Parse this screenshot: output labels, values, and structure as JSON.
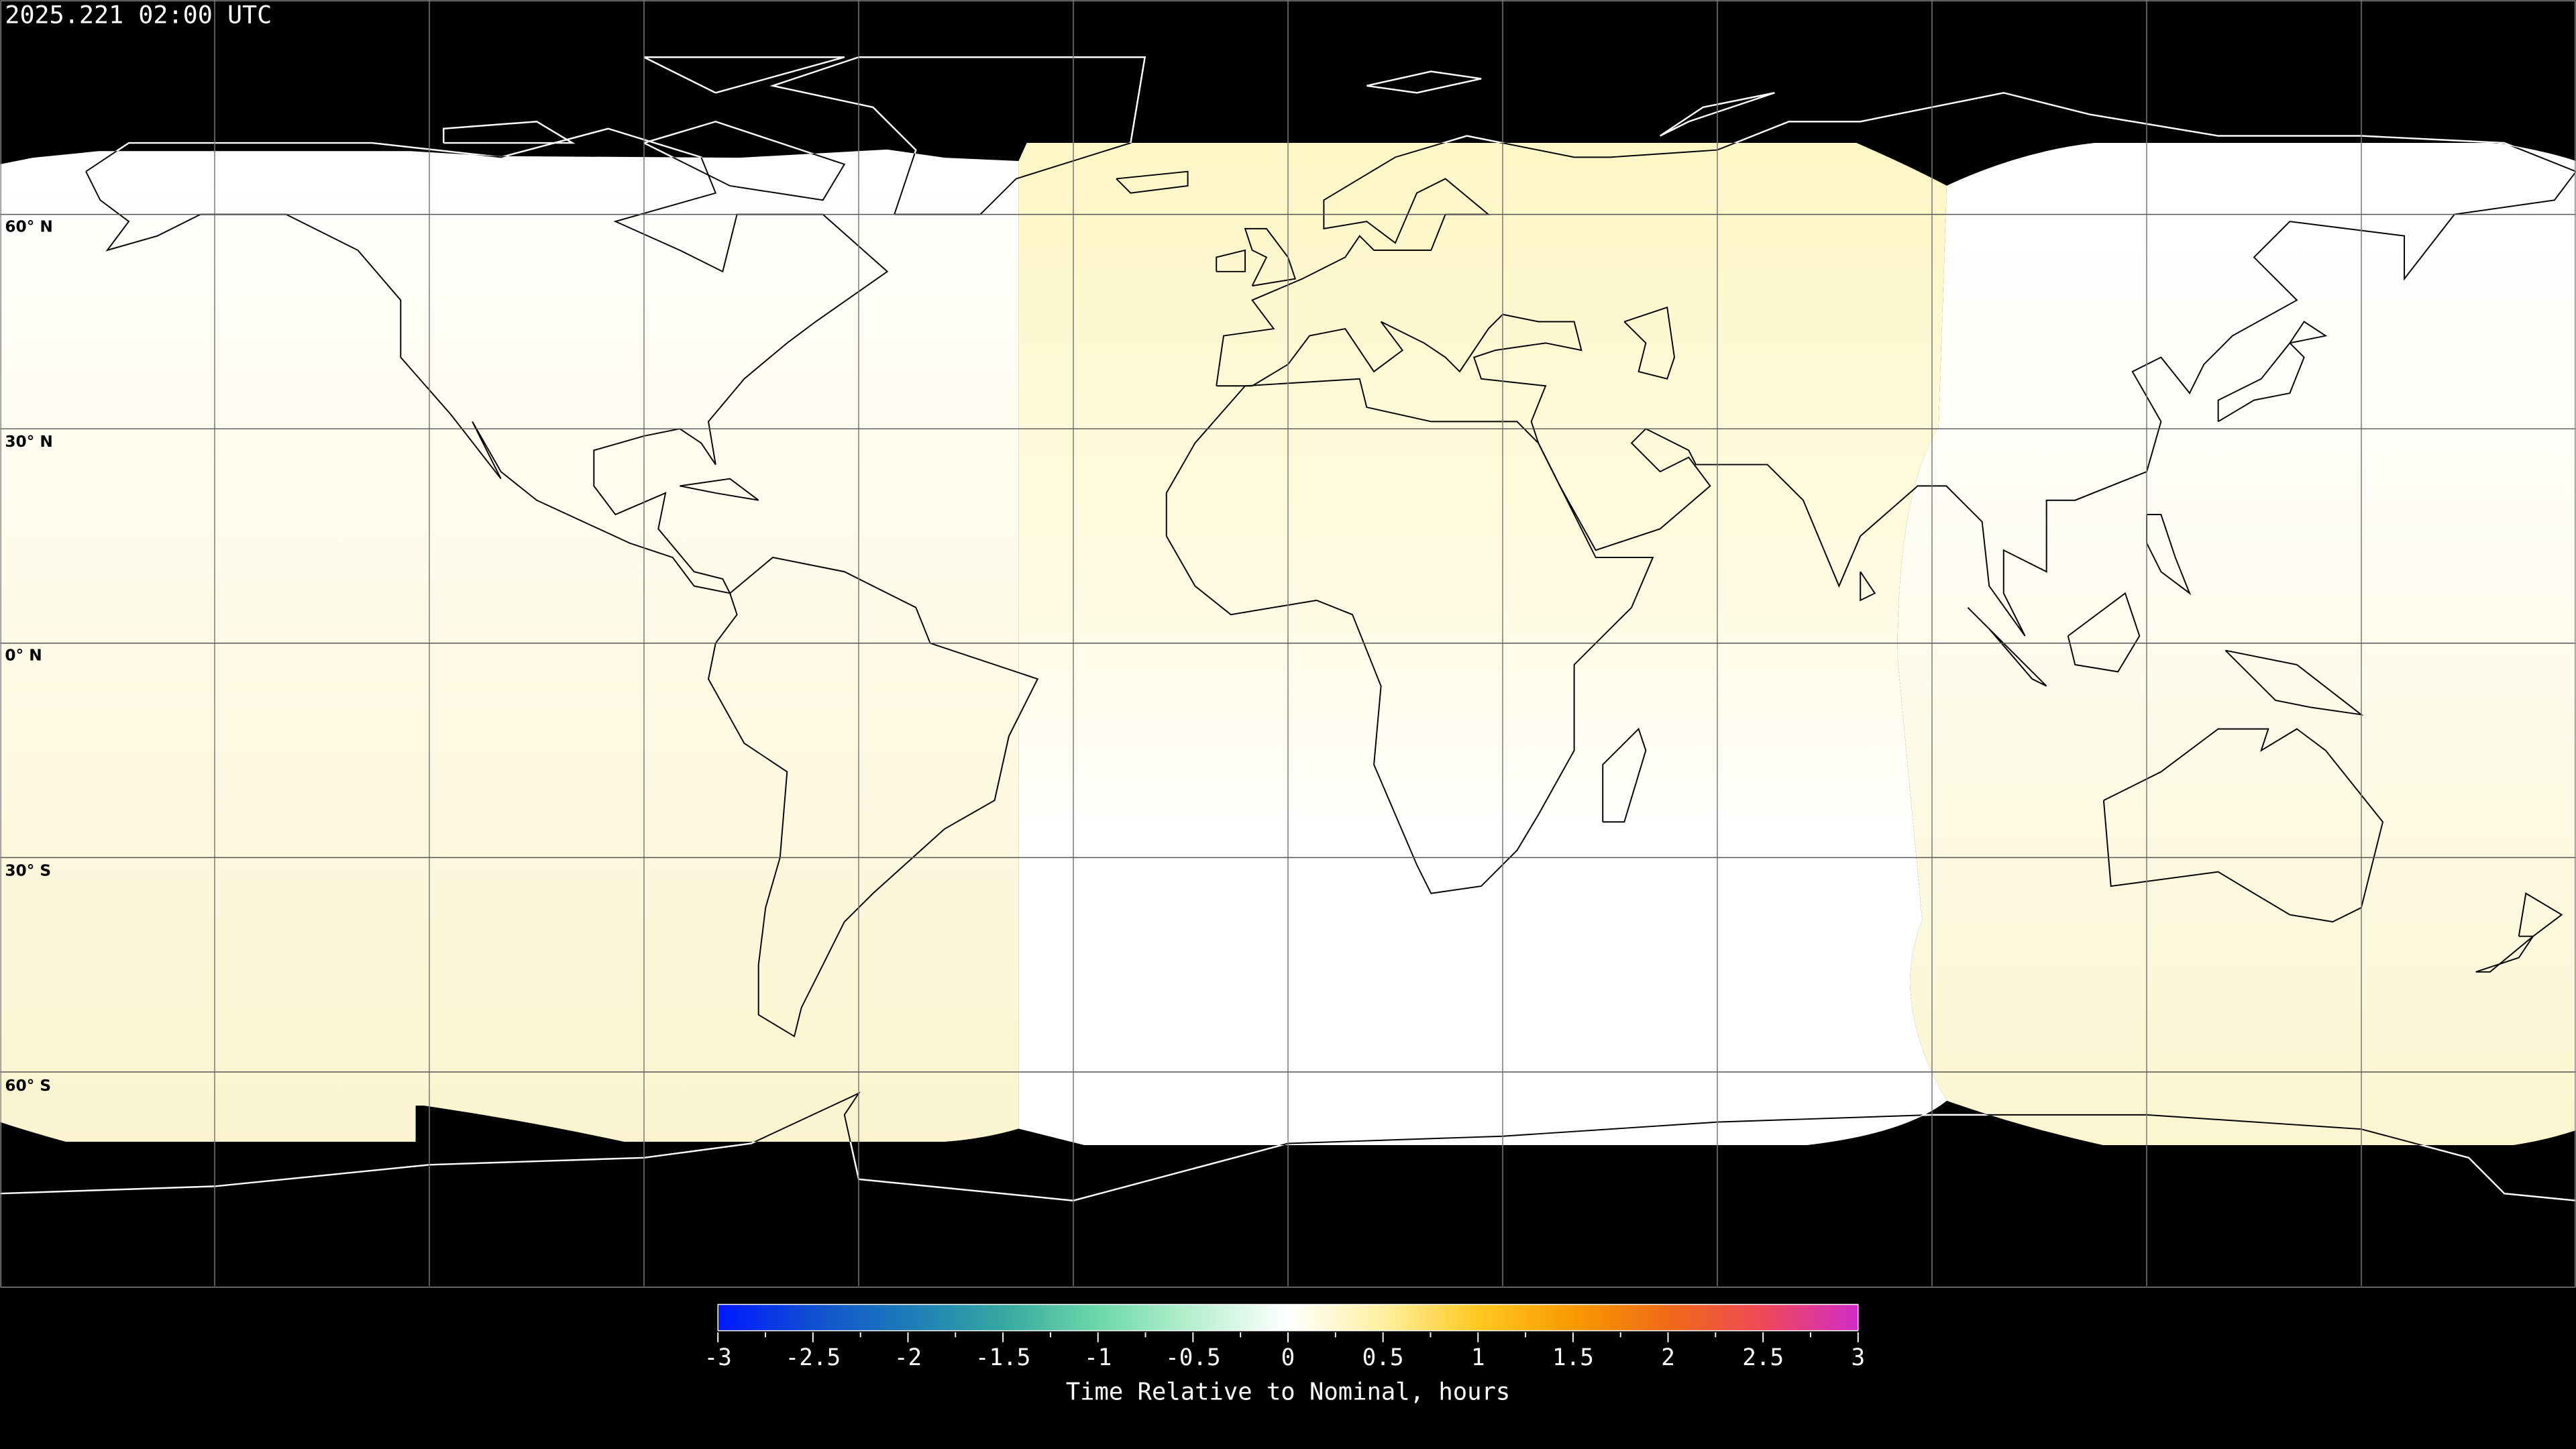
{
  "title": "2025.221 02:00 UTC",
  "map": {
    "projection": "equirectangular",
    "lon_range": [
      -180,
      180
    ],
    "lat_range": [
      -90,
      90
    ],
    "grid_spacing_deg": 30,
    "lat_labels": [
      "60° N",
      "30° N",
      "0° N",
      "30° S",
      "60° S"
    ],
    "no_data_color": "#000000",
    "coverage_colors": {
      "white": "#ffffff",
      "pale_yellow": "#fcf6d0"
    }
  },
  "colorbar": {
    "label": "Time Relative to Nominal, hours",
    "min": -3,
    "max": 3,
    "ticks": [
      "-3",
      "-2.5",
      "-2",
      "-1.5",
      "-1",
      "-0.5",
      "0",
      "0.5",
      "1",
      "1.5",
      "2",
      "2.5",
      "3"
    ],
    "colors": [
      "#0018ff",
      "#1050d0",
      "#1c7cb8",
      "#36a8a2",
      "#6cd8a8",
      "#b8f0d0",
      "#ffffff",
      "#fff0a0",
      "#ffc820",
      "#f89a00",
      "#f06a18",
      "#f04858",
      "#d02cc8"
    ]
  }
}
